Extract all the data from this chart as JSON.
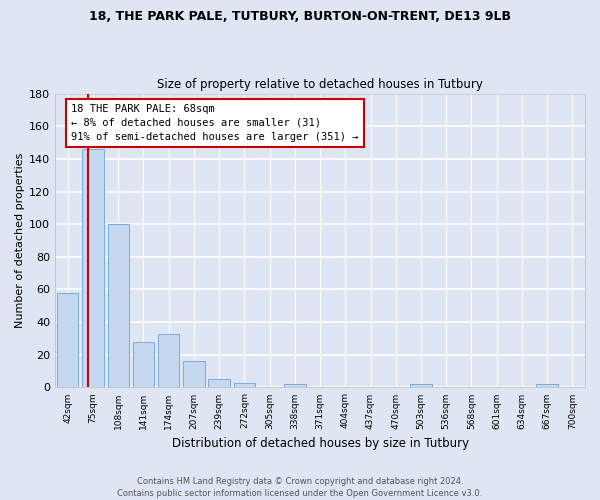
{
  "title1": "18, THE PARK PALE, TUTBURY, BURTON-ON-TRENT, DE13 9LB",
  "title2": "Size of property relative to detached houses in Tutbury",
  "xlabel": "Distribution of detached houses by size in Tutbury",
  "ylabel": "Number of detached properties",
  "categories": [
    "42sqm",
    "75sqm",
    "108sqm",
    "141sqm",
    "174sqm",
    "207sqm",
    "239sqm",
    "272sqm",
    "305sqm",
    "338sqm",
    "371sqm",
    "404sqm",
    "437sqm",
    "470sqm",
    "503sqm",
    "536sqm",
    "568sqm",
    "601sqm",
    "634sqm",
    "667sqm",
    "700sqm"
  ],
  "values": [
    58,
    146,
    100,
    28,
    33,
    16,
    5,
    3,
    0,
    2,
    0,
    0,
    0,
    0,
    2,
    0,
    0,
    0,
    0,
    2,
    0
  ],
  "bar_color": "#c5d8f0",
  "bar_edge_color": "#7aabda",
  "background_color": "#dde6f2",
  "plot_bg_color": "#dde6f2",
  "grid_color": "#ffffff",
  "annotation_text": "18 THE PARK PALE: 68sqm\n← 8% of detached houses are smaller (31)\n91% of semi-detached houses are larger (351) →",
  "annotation_box_color": "#ffffff",
  "annotation_box_edge": "#cc0000",
  "ylim": [
    0,
    180
  ],
  "footer": "Contains HM Land Registry data © Crown copyright and database right 2024.\nContains public sector information licensed under the Open Government Licence v3.0."
}
